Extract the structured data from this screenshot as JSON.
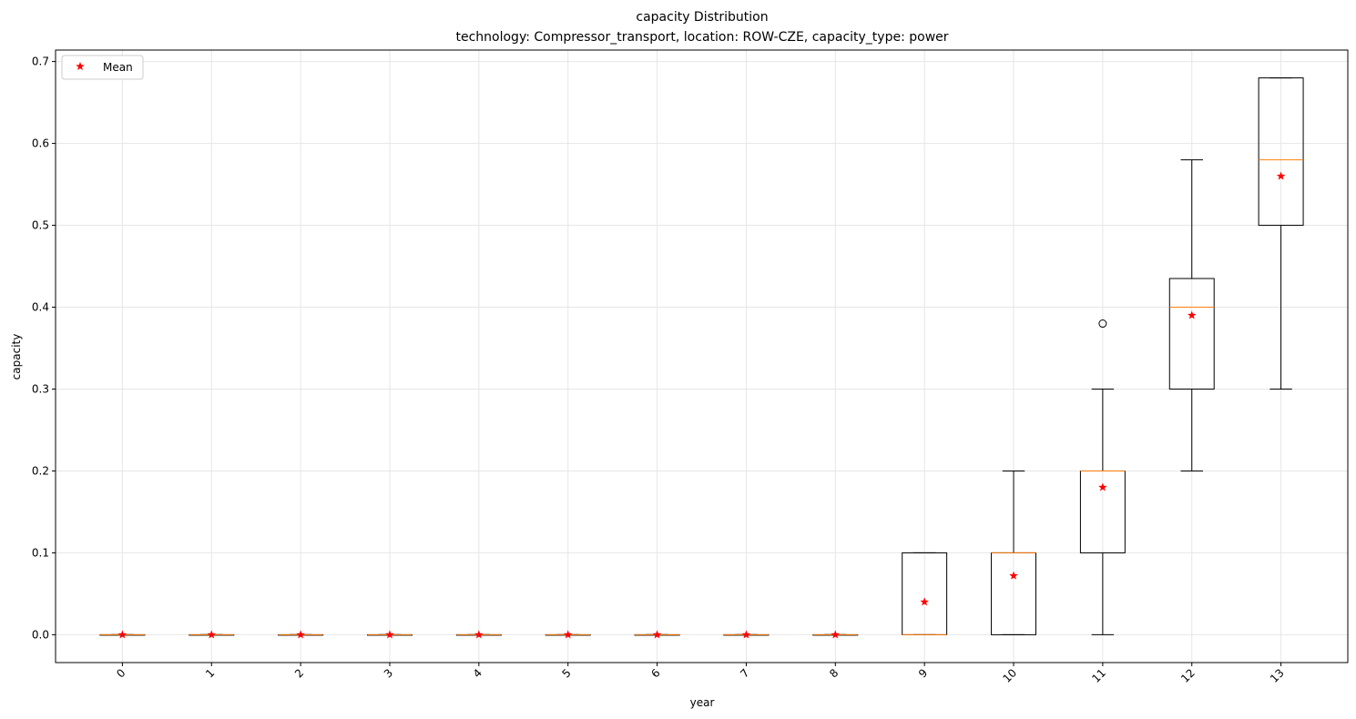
{
  "chart_data": {
    "type": "box",
    "title": "capacity Distribution",
    "subtitle": "technology: Compressor_transport, location: ROW-CZE, capacity_type: power",
    "xlabel": "year",
    "ylabel": "capacity",
    "ylim": [
      -0.034,
      0.714
    ],
    "yticks": [
      0.0,
      0.1,
      0.2,
      0.3,
      0.4,
      0.5,
      0.6,
      0.7
    ],
    "ytick_labels": [
      "0.0",
      "0.1",
      "0.2",
      "0.3",
      "0.4",
      "0.5",
      "0.6",
      "0.7"
    ],
    "grid": true,
    "legend": {
      "placement": "top-left",
      "entries": [
        {
          "label": "Mean",
          "marker": "star",
          "color": "#ff0000"
        }
      ]
    },
    "colors": {
      "box": "#000000",
      "median": "#ff7f0e",
      "mean": "#ff0000",
      "grid": "#e6e6e6"
    },
    "categories": [
      "0",
      "1",
      "2",
      "3",
      "4",
      "5",
      "6",
      "7",
      "8",
      "9",
      "10",
      "11",
      "12",
      "13"
    ],
    "boxes": [
      {
        "whislo": 0.0,
        "q1": 0.0,
        "med": 0.0,
        "q3": 0.0,
        "whishi": 0.0,
        "mean": 0.0,
        "fliers": []
      },
      {
        "whislo": 0.0,
        "q1": 0.0,
        "med": 0.0,
        "q3": 0.0,
        "whishi": 0.0,
        "mean": 0.0,
        "fliers": []
      },
      {
        "whislo": 0.0,
        "q1": 0.0,
        "med": 0.0,
        "q3": 0.0,
        "whishi": 0.0,
        "mean": 0.0,
        "fliers": []
      },
      {
        "whislo": 0.0,
        "q1": 0.0,
        "med": 0.0,
        "q3": 0.0,
        "whishi": 0.0,
        "mean": 0.0,
        "fliers": []
      },
      {
        "whislo": 0.0,
        "q1": 0.0,
        "med": 0.0,
        "q3": 0.0,
        "whishi": 0.0,
        "mean": 0.0,
        "fliers": []
      },
      {
        "whislo": 0.0,
        "q1": 0.0,
        "med": 0.0,
        "q3": 0.0,
        "whishi": 0.0,
        "mean": 0.0,
        "fliers": []
      },
      {
        "whislo": 0.0,
        "q1": 0.0,
        "med": 0.0,
        "q3": 0.0,
        "whishi": 0.0,
        "mean": 0.0,
        "fliers": []
      },
      {
        "whislo": 0.0,
        "q1": 0.0,
        "med": 0.0,
        "q3": 0.0,
        "whishi": 0.0,
        "mean": 0.0,
        "fliers": []
      },
      {
        "whislo": 0.0,
        "q1": 0.0,
        "med": 0.0,
        "q3": 0.0,
        "whishi": 0.0,
        "mean": 0.0,
        "fliers": []
      },
      {
        "whislo": 0.0,
        "q1": 0.0,
        "med": 0.0,
        "q3": 0.1,
        "whishi": 0.1,
        "mean": 0.04,
        "fliers": []
      },
      {
        "whislo": 0.0,
        "q1": 0.0,
        "med": 0.1,
        "q3": 0.1,
        "whishi": 0.2,
        "mean": 0.072,
        "fliers": []
      },
      {
        "whislo": 0.0,
        "q1": 0.1,
        "med": 0.2,
        "q3": 0.2,
        "whishi": 0.3,
        "mean": 0.18,
        "fliers": [
          0.38
        ]
      },
      {
        "whislo": 0.2,
        "q1": 0.3,
        "med": 0.4,
        "q3": 0.435,
        "whishi": 0.58,
        "mean": 0.39,
        "fliers": []
      },
      {
        "whislo": 0.3,
        "q1": 0.5,
        "med": 0.58,
        "q3": 0.68,
        "whishi": 0.68,
        "mean": 0.56,
        "fliers": []
      }
    ]
  }
}
